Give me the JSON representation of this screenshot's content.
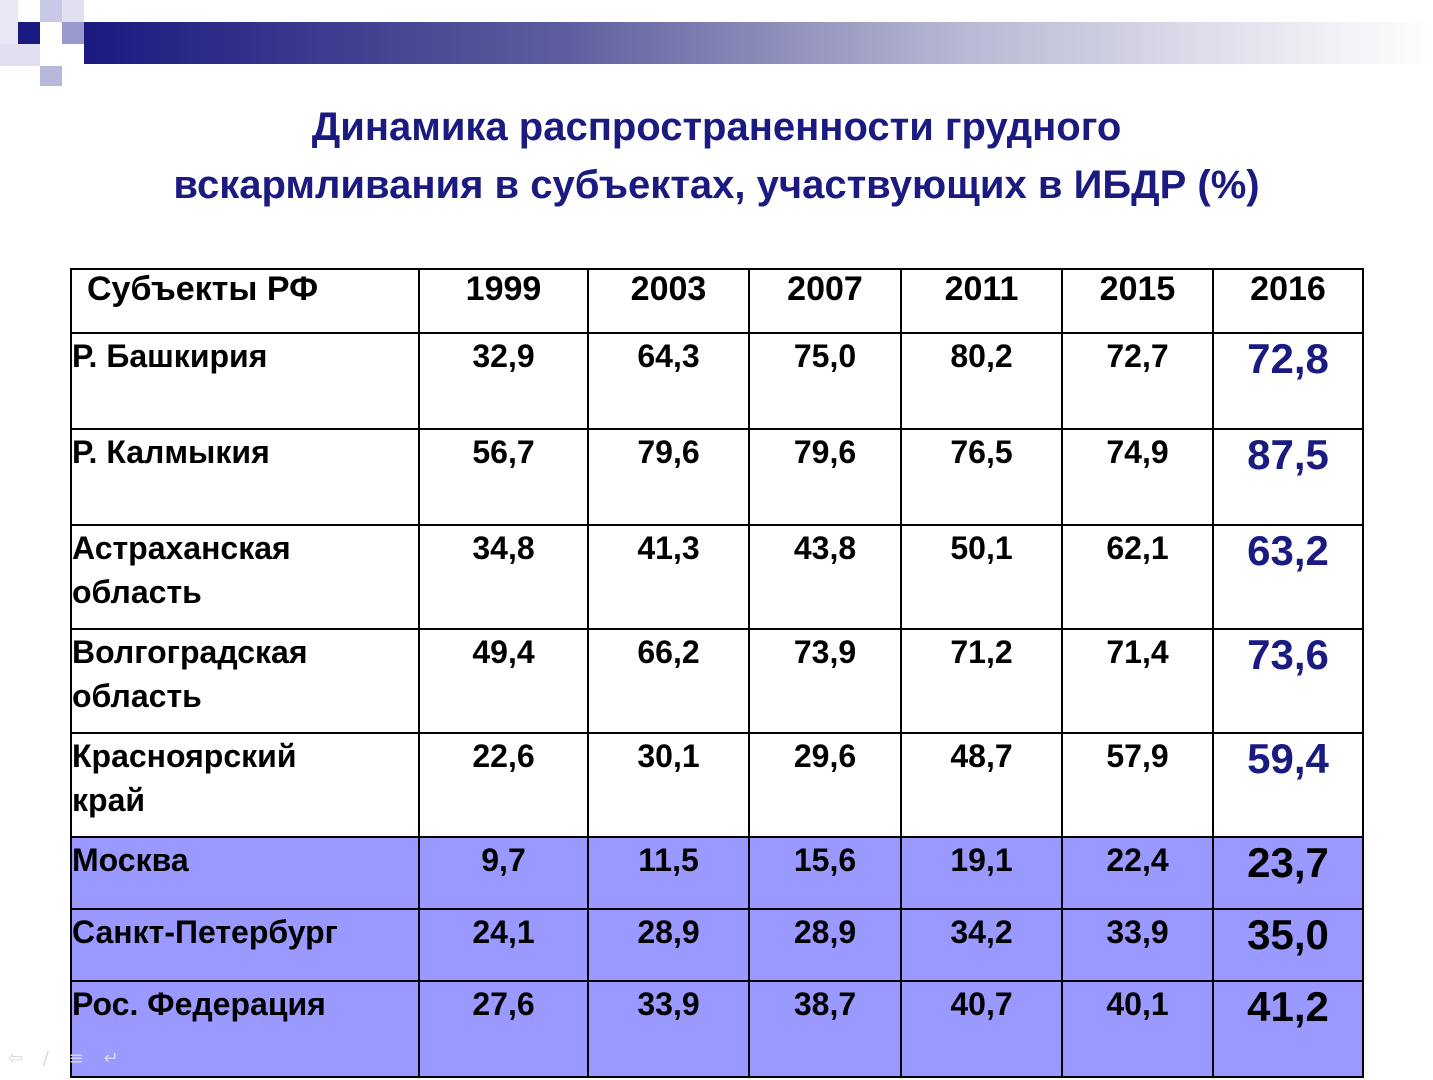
{
  "title": {
    "line1": "Динамика распространенности грудного",
    "line2": "вскармливания в субъектах, участвующих в ИБДР (%)"
  },
  "table": {
    "headers": [
      "Субъекты РФ",
      "1999",
      "2003",
      "2007",
      "2011",
      "2015",
      "2016"
    ],
    "rows": [
      {
        "region": [
          "Р. Башкирия"
        ],
        "values": [
          "32,9",
          "64,3",
          "75,0",
          "80,2",
          "72,7",
          "72,8"
        ],
        "shaded": false
      },
      {
        "region": [
          "Р. Калмыкия"
        ],
        "values": [
          "56,7",
          "79,6",
          "79,6",
          "76,5",
          "74,9",
          "87,5"
        ],
        "shaded": false
      },
      {
        "region": [
          "Астраханская",
          "область"
        ],
        "values": [
          "34,8",
          "41,3",
          "43,8",
          "50,1",
          "62,1",
          "63,2"
        ],
        "shaded": false
      },
      {
        "region": [
          "Волгоградская",
          "область"
        ],
        "values": [
          "49,4",
          "66,2",
          "73,9",
          "71,2",
          "71,4",
          "73,6"
        ],
        "shaded": false
      },
      {
        "region": [
          "Красноярский",
          "край"
        ],
        "values": [
          "22,6",
          "30,1",
          "29,6",
          "48,7",
          "57,9",
          "59,4"
        ],
        "shaded": false
      },
      {
        "region": [
          "Москва"
        ],
        "values": [
          "9,7",
          "11,5",
          "15,6",
          "19,1",
          "22,4",
          "23,7"
        ],
        "shaded": true
      },
      {
        "region": [
          "Санкт-Петербург"
        ],
        "values": [
          "24,1",
          "28,9",
          "28,9",
          "34,2",
          "33,9",
          "35,0"
        ],
        "shaded": true
      },
      {
        "region": [
          "Рос. Федерация"
        ],
        "values": [
          "27,6",
          "33,9",
          "38,7",
          "40,7",
          "40,1",
          "41,2"
        ],
        "shaded": true
      }
    ]
  },
  "colors": {
    "title": "#1a1a80",
    "highlight_row": "#9999ff",
    "last_column": "#1a1a80"
  },
  "nav_icons": [
    "arrow-left-icon",
    "pen-icon",
    "menu-icon",
    "return-icon"
  ]
}
